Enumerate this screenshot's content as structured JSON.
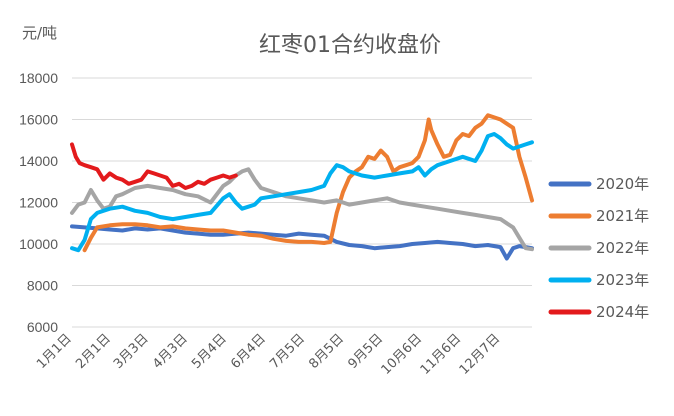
{
  "chart_data": {
    "type": "line",
    "title": "红枣01合约收盘价",
    "ylabel": "元/吨",
    "xlabel": "",
    "ylim": [
      6000,
      18000
    ],
    "yticks": [
      6000,
      8000,
      10000,
      12000,
      14000,
      16000,
      18000
    ],
    "xlim": [
      0,
      365
    ],
    "categories": [
      "1月1日",
      "2月1日",
      "3月3日",
      "4月3日",
      "5月4日",
      "6月4日",
      "7月5日",
      "8月5日",
      "9月5日",
      "10月6日",
      "11月6日",
      "12月7日"
    ],
    "category_days": [
      0,
      31,
      61,
      92,
      123,
      154,
      185,
      216,
      247,
      278,
      309,
      340
    ],
    "grid": true,
    "legend_position": "right",
    "series": [
      {
        "name": "2020年",
        "color": "#4472C4",
        "x": [
          0,
          10,
          20,
          30,
          40,
          50,
          60,
          70,
          80,
          90,
          100,
          110,
          120,
          130,
          140,
          150,
          160,
          170,
          180,
          190,
          200,
          210,
          220,
          230,
          240,
          250,
          260,
          270,
          280,
          290,
          300,
          310,
          320,
          330,
          340,
          345,
          350,
          355,
          360,
          365
        ],
        "y": [
          10850,
          10800,
          10750,
          10700,
          10650,
          10750,
          10700,
          10750,
          10650,
          10550,
          10500,
          10450,
          10450,
          10500,
          10550,
          10500,
          10450,
          10400,
          10500,
          10450,
          10400,
          10100,
          9950,
          9900,
          9800,
          9850,
          9900,
          10000,
          10050,
          10100,
          10050,
          10000,
          9900,
          9950,
          9850,
          9300,
          9800,
          9900,
          9850,
          9800
        ]
      },
      {
        "name": "2021年",
        "color": "#ED7D31",
        "x": [
          10,
          15,
          20,
          30,
          40,
          50,
          60,
          70,
          80,
          90,
          100,
          110,
          120,
          130,
          140,
          150,
          160,
          170,
          180,
          190,
          200,
          205,
          210,
          215,
          220,
          225,
          230,
          235,
          240,
          245,
          250,
          255,
          260,
          265,
          270,
          275,
          280,
          283,
          285,
          290,
          295,
          300,
          305,
          310,
          315,
          320,
          325,
          330,
          335,
          340,
          345,
          350,
          355,
          360,
          365
        ],
        "y": [
          9700,
          10300,
          10800,
          10900,
          10950,
          10950,
          10900,
          10800,
          10850,
          10750,
          10700,
          10650,
          10650,
          10550,
          10450,
          10400,
          10250,
          10150,
          10100,
          10100,
          10050,
          10100,
          11500,
          12500,
          13200,
          13500,
          13700,
          14200,
          14100,
          14500,
          14200,
          13500,
          13700,
          13800,
          13900,
          14200,
          15000,
          16000,
          15500,
          14800,
          14200,
          14300,
          15000,
          15300,
          15200,
          15600,
          15800,
          16200,
          16100,
          16000,
          15800,
          15600,
          14200,
          13200,
          12100
        ]
      },
      {
        "name": "2022年",
        "color": "#A5A5A5",
        "x": [
          0,
          5,
          10,
          15,
          20,
          25,
          30,
          35,
          40,
          50,
          60,
          70,
          80,
          90,
          100,
          110,
          120,
          125,
          130,
          135,
          140,
          145,
          150,
          160,
          170,
          180,
          190,
          200,
          210,
          220,
          230,
          240,
          250,
          260,
          270,
          280,
          290,
          300,
          310,
          320,
          330,
          340,
          345,
          350,
          355,
          360,
          365
        ],
        "y": [
          11500,
          11900,
          12000,
          12600,
          12100,
          11700,
          11800,
          12300,
          12400,
          12700,
          12800,
          12700,
          12600,
          12400,
          12300,
          12000,
          12800,
          13000,
          13300,
          13500,
          13600,
          13100,
          12700,
          12500,
          12300,
          12200,
          12100,
          12000,
          12100,
          11900,
          12000,
          12100,
          12200,
          12000,
          11900,
          11800,
          11700,
          11600,
          11500,
          11400,
          11300,
          11200,
          11000,
          10800,
          10300,
          9800,
          9750
        ]
      },
      {
        "name": "2023年",
        "color": "#00B0F0",
        "x": [
          0,
          5,
          10,
          15,
          20,
          30,
          40,
          50,
          60,
          70,
          80,
          90,
          100,
          110,
          120,
          125,
          130,
          135,
          140,
          145,
          150,
          160,
          170,
          180,
          190,
          200,
          205,
          210,
          215,
          220,
          230,
          240,
          250,
          260,
          270,
          275,
          280,
          285,
          290,
          300,
          310,
          320,
          325,
          330,
          335,
          340,
          345,
          350,
          355,
          360,
          365
        ],
        "y": [
          9800,
          9700,
          10200,
          11200,
          11500,
          11700,
          11800,
          11600,
          11500,
          11300,
          11200,
          11300,
          11400,
          11500,
          12200,
          12400,
          12000,
          11700,
          11800,
          11900,
          12200,
          12300,
          12400,
          12500,
          12600,
          12800,
          13400,
          13800,
          13700,
          13500,
          13300,
          13200,
          13300,
          13400,
          13500,
          13700,
          13300,
          13600,
          13800,
          14000,
          14200,
          14000,
          14500,
          15200,
          15300,
          15100,
          14800,
          14600,
          14700,
          14800,
          14900
        ]
      },
      {
        "name": "2024年",
        "color": "#E31A1C",
        "x": [
          0,
          3,
          6,
          10,
          15,
          20,
          25,
          30,
          35,
          40,
          45,
          50,
          55,
          60,
          65,
          70,
          75,
          80,
          85,
          90,
          95,
          100,
          105,
          110,
          115,
          120,
          125,
          130
        ],
        "y": [
          14800,
          14200,
          13900,
          13800,
          13700,
          13600,
          13100,
          13400,
          13200,
          13100,
          12900,
          13000,
          13100,
          13500,
          13400,
          13300,
          13200,
          12800,
          12900,
          12700,
          12800,
          13000,
          12900,
          13100,
          13200,
          13300,
          13200,
          13300
        ]
      }
    ]
  }
}
